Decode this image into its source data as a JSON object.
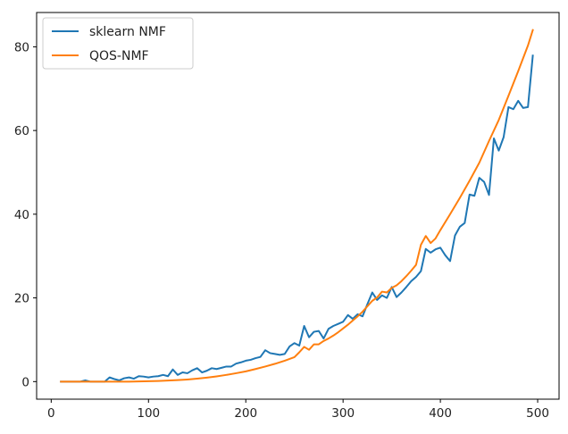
{
  "chart_data": {
    "type": "line",
    "title": "",
    "xlabel": "",
    "ylabel": "",
    "xlim": [
      -15,
      522
    ],
    "ylim": [
      -4.2,
      88.2
    ],
    "xticks": [
      0,
      100,
      200,
      300,
      400,
      500
    ],
    "yticks": [
      0,
      20,
      40,
      60,
      80
    ],
    "grid": false,
    "legend_position": "top-left",
    "series": [
      {
        "name": "sklearn NMF",
        "color": "#1f77b4",
        "x": [
          10,
          15,
          20,
          25,
          30,
          35,
          40,
          45,
          50,
          55,
          60,
          65,
          70,
          75,
          80,
          85,
          90,
          95,
          100,
          105,
          110,
          115,
          120,
          125,
          130,
          135,
          140,
          145,
          150,
          155,
          160,
          165,
          170,
          175,
          180,
          185,
          190,
          195,
          200,
          205,
          210,
          215,
          220,
          225,
          230,
          235,
          240,
          245,
          250,
          255,
          260,
          265,
          270,
          275,
          280,
          285,
          290,
          295,
          300,
          305,
          310,
          315,
          320,
          325,
          330,
          335,
          340,
          345,
          350,
          355,
          360,
          365,
          370,
          375,
          380,
          385,
          390,
          395,
          400,
          405,
          410,
          415,
          420,
          425,
          430,
          435,
          440,
          445,
          450,
          455,
          460,
          465,
          470,
          475,
          480,
          485,
          490,
          495
        ],
        "y": [
          0,
          0,
          0,
          0,
          0,
          0.3,
          0,
          0,
          0,
          0,
          1.0,
          0.6,
          0.3,
          0.8,
          1.0,
          0.7,
          1.3,
          1.2,
          1.0,
          1.2,
          1.3,
          1.6,
          1.3,
          2.9,
          1.6,
          2.2,
          2.0,
          2.7,
          3.2,
          2.2,
          2.6,
          3.2,
          3.0,
          3.3,
          3.6,
          3.6,
          4.3,
          4.6,
          5.0,
          5.2,
          5.6,
          5.9,
          7.5,
          6.8,
          6.6,
          6.4,
          6.6,
          8.4,
          9.2,
          8.6,
          13.3,
          10.6,
          11.9,
          12.1,
          10.3,
          12.6,
          13.3,
          13.8,
          14.3,
          15.9,
          15.0,
          16.1,
          15.6,
          18.5,
          21.3,
          19.5,
          20.6,
          20.0,
          22.6,
          20.2,
          21.3,
          22.6,
          24.0,
          25.0,
          26.4,
          31.7,
          30.8,
          31.6,
          32.0,
          30.2,
          28.8,
          34.9,
          37.0,
          37.9,
          44.7,
          44.4,
          48.7,
          47.7,
          44.6,
          58.1,
          55.2,
          58.4,
          65.6,
          65.1,
          67.1,
          65.4,
          65.6,
          77.9
        ]
      },
      {
        "name": "QOS-NMF",
        "color": "#ff7f0e",
        "x": [
          10,
          20,
          30,
          40,
          50,
          60,
          70,
          80,
          90,
          100,
          110,
          120,
          130,
          140,
          150,
          160,
          170,
          180,
          190,
          200,
          210,
          220,
          230,
          240,
          250,
          255,
          260,
          265,
          270,
          275,
          280,
          285,
          290,
          295,
          300,
          305,
          310,
          315,
          320,
          325,
          330,
          335,
          340,
          345,
          350,
          355,
          360,
          365,
          370,
          375,
          380,
          385,
          390,
          395,
          400,
          410,
          420,
          430,
          440,
          450,
          460,
          470,
          480,
          490,
          495
        ],
        "y": [
          0,
          0,
          0,
          0,
          0,
          0,
          0,
          0,
          0.05,
          0.1,
          0.15,
          0.25,
          0.35,
          0.5,
          0.7,
          0.95,
          1.25,
          1.6,
          2.0,
          2.45,
          3.0,
          3.6,
          4.25,
          5.0,
          5.85,
          7.0,
          8.3,
          7.6,
          8.9,
          8.9,
          9.7,
          10.3,
          11.0,
          11.8,
          12.7,
          13.6,
          14.6,
          15.6,
          16.7,
          18.0,
          19.3,
          20.1,
          21.5,
          21.3,
          22.4,
          23.0,
          24.0,
          25.2,
          26.5,
          27.9,
          32.7,
          34.8,
          33.1,
          34.2,
          36.2,
          40.0,
          43.9,
          48.0,
          52.3,
          57.5,
          62.5,
          68.3,
          74.2,
          80.3,
          84.0
        ]
      }
    ]
  }
}
